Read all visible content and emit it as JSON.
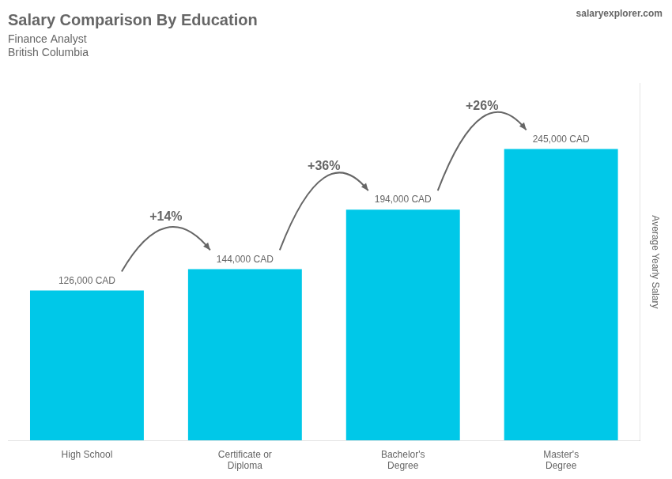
{
  "chart_data": {
    "type": "bar",
    "title": "Salary Comparison By Education",
    "subtitle": [
      "Finance Analyst",
      "British Columbia"
    ],
    "watermark": "salaryexplorer.com",
    "ylabel": "Average Yearly Salary",
    "categories": [
      "High School",
      "Certificate or\nDiploma",
      "Bachelor's\nDegree",
      "Master's\nDegree"
    ],
    "values": [
      126000,
      144000,
      194000,
      245000
    ],
    "value_labels": [
      "126,000 CAD",
      "144,000 CAD",
      "194,000 CAD",
      "245,000 CAD"
    ],
    "data_labels": true,
    "annotations": [
      "+14%",
      "+36%",
      "+26%"
    ],
    "color": "#00c8e8",
    "ylim": [
      0,
      300000
    ],
    "grid": false,
    "tick_labels": "x"
  }
}
